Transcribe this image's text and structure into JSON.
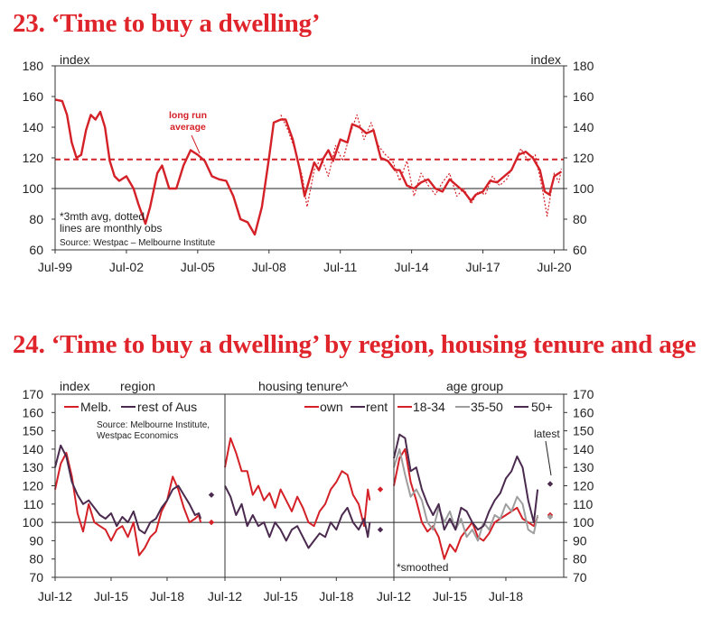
{
  "chart1": {
    "title": "23. ‘Time to buy a dwelling’",
    "left_unit": "index",
    "right_unit": "index",
    "long_run_label": [
      "long run",
      "average"
    ],
    "note_lines": [
      "*3mth avg, dotted",
      "lines are monthly obs"
    ],
    "source": "Source: Westpac – Melbourne Institute"
  },
  "chart2": {
    "title": "24. ‘Time to buy a dwelling’ by region, housing tenure and age",
    "index_label": "index",
    "panel_titles": [
      "region",
      "housing tenure^",
      "age group"
    ],
    "legend_region": [
      "Melb.",
      "rest of Aus"
    ],
    "legend_tenure": [
      "own",
      "rent"
    ],
    "legend_age": [
      "18-34",
      "35-50",
      "50+"
    ],
    "source_lines": [
      "Source: Melbourne Institute,",
      "Westpac Economics"
    ],
    "latest_label": "latest",
    "smoothed_label": "*smoothed"
  },
  "colors": {
    "red": "#d42027",
    "purple": "#4a2a4e",
    "grey": "#9e9e9e",
    "title_red": "#e0242b"
  },
  "chart_data": [
    {
      "type": "line",
      "title": "23. ‘Time to buy a dwelling’",
      "xlabel": "",
      "ylabel": "index",
      "ylim": [
        60,
        180
      ],
      "yticks": [
        60,
        80,
        100,
        120,
        140,
        160,
        180
      ],
      "xlim": [
        1999.5,
        2020.9
      ],
      "xtick_labels": [
        "Jul-99",
        "Jul-02",
        "Jul-05",
        "Jul-08",
        "Jul-11",
        "Jul-14",
        "Jul-17",
        "Jul-20"
      ],
      "xtick_values": [
        1999.5,
        2002.5,
        2005.5,
        2008.5,
        2011.5,
        2014.5,
        2017.5,
        2020.5
      ],
      "reference_lines": [
        {
          "y": 100,
          "style": "solid"
        },
        {
          "y": 119,
          "style": "dashed",
          "label": "long run average"
        }
      ],
      "series": [
        {
          "name": "3mth avg",
          "x": [
            1999.5,
            1999.8,
            2000.0,
            2000.2,
            2000.4,
            2000.6,
            2000.8,
            2001.0,
            2001.2,
            2001.4,
            2001.6,
            2001.8,
            2002.0,
            2002.2,
            2002.5,
            2002.8,
            2003.0,
            2003.3,
            2003.5,
            2003.8,
            2004.0,
            2004.3,
            2004.6,
            2004.9,
            2005.2,
            2005.5,
            2005.8,
            2006.1,
            2006.4,
            2006.7,
            2007.0,
            2007.3,
            2007.6,
            2007.9,
            2008.2,
            2008.5,
            2008.7,
            2009.0,
            2009.2,
            2009.5,
            2009.8,
            2010.0,
            2010.2,
            2010.4,
            2010.6,
            2010.8,
            2011.0,
            2011.2,
            2011.5,
            2011.8,
            2012.0,
            2012.3,
            2012.6,
            2012.9,
            2013.2,
            2013.5,
            2013.8,
            2014.0,
            2014.3,
            2014.6,
            2014.9,
            2015.2,
            2015.5,
            2015.8,
            2016.1,
            2016.4,
            2016.7,
            2017.0,
            2017.2,
            2017.5,
            2017.8,
            2018.1,
            2018.4,
            2018.7,
            2019.0,
            2019.3,
            2019.6,
            2019.9,
            2020.1,
            2020.3,
            2020.5,
            2020.8
          ],
          "values": [
            158,
            157,
            148,
            130,
            120,
            122,
            138,
            148,
            145,
            150,
            140,
            118,
            108,
            105,
            108,
            100,
            90,
            77,
            88,
            110,
            115,
            100,
            100,
            115,
            125,
            122,
            118,
            108,
            106,
            105,
            95,
            80,
            78,
            70,
            88,
            120,
            143,
            145,
            145,
            132,
            112,
            95,
            106,
            117,
            112,
            120,
            125,
            118,
            132,
            130,
            142,
            140,
            136,
            138,
            120,
            118,
            112,
            112,
            102,
            100,
            104,
            106,
            100,
            98,
            106,
            102,
            98,
            92,
            96,
            98,
            105,
            104,
            108,
            112,
            122,
            124,
            120,
            112,
            98,
            96,
            108,
            111
          ]
        },
        {
          "name": "monthly obs",
          "style": "dotted",
          "x": [
            2009.0,
            2009.3,
            2009.6,
            2009.9,
            2010.1,
            2010.4,
            2010.7,
            2011.0,
            2011.3,
            2011.6,
            2011.9,
            2012.2,
            2012.5,
            2012.8,
            2013.1,
            2013.4,
            2013.7,
            2014.0,
            2014.3,
            2014.6,
            2014.9,
            2015.2,
            2015.5,
            2015.8,
            2016.1,
            2016.4,
            2016.7,
            2017.0,
            2017.3,
            2017.6,
            2017.9,
            2018.2,
            2018.5,
            2018.8,
            2019.1,
            2019.4,
            2019.7,
            2020.0,
            2020.2,
            2020.35,
            2020.5,
            2020.7,
            2020.8
          ],
          "values": [
            148,
            138,
            125,
            108,
            88,
            112,
            120,
            108,
            128,
            118,
            135,
            148,
            132,
            143,
            128,
            122,
            118,
            105,
            118,
            95,
            110,
            102,
            96,
            104,
            110,
            95,
            100,
            90,
            98,
            96,
            108,
            102,
            106,
            116,
            126,
            118,
            122,
            100,
            82,
            96,
            110,
            104,
            113
          ]
        }
      ]
    },
    {
      "type": "line",
      "title": "24. ‘Time to buy a dwelling’ by region, housing tenure and age",
      "xlabel": "",
      "ylabel": "index",
      "ylim": [
        70,
        170
      ],
      "yticks": [
        70,
        80,
        90,
        100,
        110,
        120,
        130,
        140,
        150,
        160,
        170
      ],
      "reference_lines": [
        {
          "y": 100,
          "style": "solid"
        }
      ],
      "panels": [
        {
          "name": "region",
          "xlim": [
            2012.5,
            2021.6
          ],
          "xtick_labels": [
            "Jul-12",
            "Jul-15",
            "Jul-18"
          ],
          "xtick_values": [
            2012.5,
            2015.5,
            2018.5
          ],
          "series": [
            {
              "name": "Melb.",
              "x": [
                2012.5,
                2012.8,
                2013.1,
                2013.4,
                2013.7,
                2014.0,
                2014.3,
                2014.6,
                2014.9,
                2015.2,
                2015.5,
                2015.8,
                2016.1,
                2016.4,
                2016.7,
                2017.0,
                2017.3,
                2017.6,
                2017.9,
                2018.2,
                2018.5,
                2018.8,
                2019.1,
                2019.4,
                2019.7,
                2020.0,
                2020.2,
                2020.3
              ],
              "values": [
                118,
                132,
                138,
                125,
                105,
                95,
                110,
                100,
                98,
                96,
                90,
                96,
                98,
                92,
                100,
                82,
                86,
                92,
                95,
                106,
                112,
                125,
                118,
                108,
                100,
                102,
                104,
                100
              ]
            },
            {
              "name": "rest of Aus",
              "x": [
                2012.5,
                2012.8,
                2013.1,
                2013.4,
                2013.7,
                2014.0,
                2014.3,
                2014.6,
                2014.9,
                2015.2,
                2015.5,
                2015.8,
                2016.1,
                2016.4,
                2016.7,
                2017.0,
                2017.3,
                2017.6,
                2017.9,
                2018.2,
                2018.5,
                2018.8,
                2019.1,
                2019.4,
                2019.7,
                2020.0,
                2020.2,
                2020.3
              ],
              "values": [
                130,
                142,
                136,
                122,
                115,
                110,
                112,
                108,
                104,
                102,
                105,
                98,
                103,
                100,
                106,
                96,
                94,
                100,
                102,
                108,
                112,
                118,
                120,
                115,
                110,
                104,
                105,
                102
              ]
            }
          ],
          "latest": [
            {
              "series": "rest of Aus",
              "value": 115
            },
            {
              "series": "Melb.",
              "value": 100
            }
          ]
        },
        {
          "name": "housing tenure",
          "xlim": [
            2012.5,
            2021.6
          ],
          "xtick_labels": [
            "Jul-12",
            "Jul-15",
            "Jul-18"
          ],
          "xtick_values": [
            2012.5,
            2015.5,
            2018.5
          ],
          "series": [
            {
              "name": "own",
              "x": [
                2012.5,
                2012.8,
                2013.1,
                2013.4,
                2013.7,
                2014.0,
                2014.3,
                2014.6,
                2014.9,
                2015.2,
                2015.5,
                2015.8,
                2016.1,
                2016.4,
                2016.7,
                2017.0,
                2017.3,
                2017.6,
                2017.9,
                2018.2,
                2018.5,
                2018.8,
                2019.1,
                2019.4,
                2019.7,
                2020.0,
                2020.2,
                2020.3
              ],
              "values": [
                130,
                146,
                138,
                128,
                128,
                115,
                120,
                112,
                116,
                108,
                118,
                112,
                106,
                114,
                108,
                100,
                98,
                106,
                110,
                118,
                122,
                128,
                126,
                115,
                110,
                98,
                118,
                112
              ]
            },
            {
              "name": "rent",
              "x": [
                2012.5,
                2012.8,
                2013.1,
                2013.4,
                2013.7,
                2014.0,
                2014.3,
                2014.6,
                2014.9,
                2015.2,
                2015.5,
                2015.8,
                2016.1,
                2016.4,
                2016.7,
                2017.0,
                2017.3,
                2017.6,
                2017.9,
                2018.2,
                2018.5,
                2018.8,
                2019.1,
                2019.4,
                2019.7,
                2020.0,
                2020.2,
                2020.3
              ],
              "values": [
                120,
                114,
                104,
                110,
                98,
                104,
                98,
                100,
                92,
                100,
                96,
                90,
                96,
                98,
                92,
                86,
                90,
                94,
                92,
                100,
                96,
                104,
                108,
                100,
                96,
                102,
                92,
                100
              ]
            }
          ],
          "latest": [
            {
              "series": "own",
              "value": 118
            },
            {
              "series": "rent",
              "value": 96
            }
          ]
        },
        {
          "name": "age group",
          "xlim": [
            2012.5,
            2021.6
          ],
          "xtick_labels": [
            "Jul-12",
            "Jul-15",
            "Jul-18"
          ],
          "xtick_values": [
            2012.5,
            2015.5,
            2018.5
          ],
          "series": [
            {
              "name": "18-34",
              "x": [
                2012.5,
                2012.8,
                2013.1,
                2013.4,
                2013.7,
                2014.0,
                2014.3,
                2014.6,
                2014.9,
                2015.2,
                2015.5,
                2015.8,
                2016.1,
                2016.4,
                2016.7,
                2017.0,
                2017.3,
                2017.6,
                2017.9,
                2018.2,
                2018.5,
                2018.8,
                2019.1,
                2019.4,
                2019.7,
                2020.0,
                2020.2
              ],
              "values": [
                120,
                135,
                140,
                122,
                112,
                100,
                95,
                98,
                92,
                80,
                88,
                84,
                92,
                96,
                100,
                92,
                90,
                94,
                100,
                102,
                104,
                106,
                108,
                102,
                100,
                98,
                103
              ]
            },
            {
              "name": "35-50",
              "x": [
                2012.5,
                2012.8,
                2013.1,
                2013.4,
                2013.7,
                2014.0,
                2014.3,
                2014.6,
                2014.9,
                2015.2,
                2015.5,
                2015.8,
                2016.1,
                2016.4,
                2016.7,
                2017.0,
                2017.3,
                2017.6,
                2017.9,
                2018.2,
                2018.5,
                2018.8,
                2019.1,
                2019.4,
                2019.7,
                2020.0,
                2020.2
              ],
              "values": [
                130,
                140,
                126,
                114,
                118,
                112,
                100,
                96,
                108,
                100,
                106,
                96,
                102,
                92,
                96,
                90,
                100,
                96,
                104,
                102,
                110,
                106,
                114,
                110,
                96,
                94,
                104
              ]
            },
            {
              "name": "50+",
              "x": [
                2012.5,
                2012.8,
                2013.1,
                2013.4,
                2013.7,
                2014.0,
                2014.3,
                2014.6,
                2014.9,
                2015.2,
                2015.5,
                2015.8,
                2016.1,
                2016.4,
                2016.7,
                2017.0,
                2017.3,
                2017.6,
                2017.9,
                2018.2,
                2018.5,
                2018.8,
                2019.1,
                2019.4,
                2019.7,
                2020.0,
                2020.2
              ],
              "values": [
                135,
                148,
                146,
                128,
                130,
                118,
                110,
                104,
                110,
                96,
                102,
                96,
                108,
                106,
                100,
                96,
                98,
                106,
                112,
                116,
                124,
                128,
                136,
                130,
                112,
                100,
                118
              ]
            }
          ],
          "latest": [
            {
              "series": "50+",
              "value": 121
            },
            {
              "series": "18-34",
              "value": 104
            },
            {
              "series": "35-50",
              "value": 103
            }
          ]
        }
      ]
    }
  ]
}
